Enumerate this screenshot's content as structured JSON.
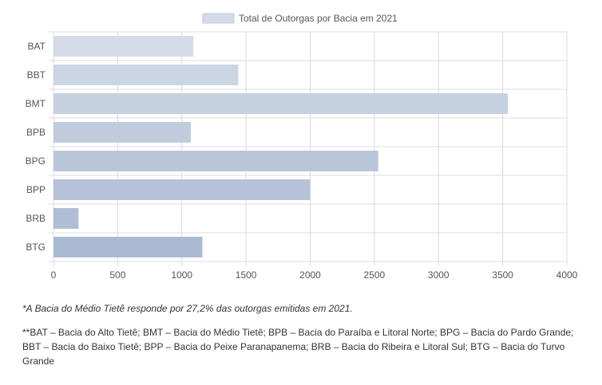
{
  "chart_data": {
    "type": "bar",
    "orientation": "horizontal",
    "categories": [
      "BAT",
      "BBT",
      "BMT",
      "BPB",
      "BPG",
      "BPP",
      "BRB",
      "BTG"
    ],
    "series": [
      {
        "name": "Total de Outorgas por Bacia em 2021",
        "values": [
          1090,
          1440,
          3540,
          1070,
          2530,
          2000,
          195,
          1160
        ]
      }
    ],
    "xlim": [
      0,
      4000
    ],
    "xticks": [
      "0",
      "500",
      "1000",
      "1500",
      "2000",
      "2500",
      "3000",
      "3500",
      "4000"
    ],
    "grid": true,
    "legend_position": "top",
    "colors": [
      "#d3dbe7",
      "#cbd5e3",
      "#c6d1e0",
      "#c0cbdd",
      "#bac6da",
      "#b5c2d7",
      "#b0bed5",
      "#abbad3"
    ]
  },
  "notes": {
    "note1": "*A Bacia do Médio Tietê responde por 27,2% das outorgas emitidas em 2021.",
    "note2": "**BAT – Bacia do Alto Tietê; BMT – Bacia do Médio Tietê; BPB – Bacia do Paraíba e Litoral Norte; BPG – Bacia do Pardo Grande; BBT – Bacia do Baixo Tietê; BPP – Bacia do Peixe Paranapanema; BRB – Bacia do Ribeira e Litoral Sul; BTG – Bacia do Turvo Grande"
  }
}
